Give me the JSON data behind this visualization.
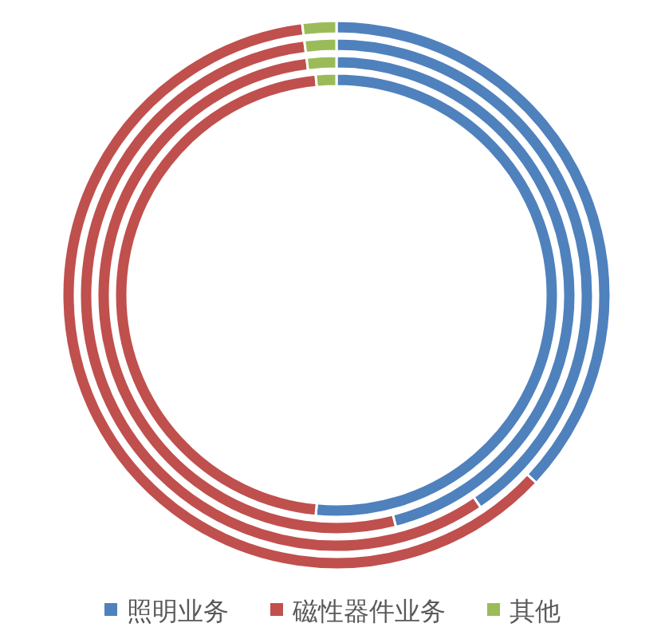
{
  "chart_data": {
    "type": "donut",
    "categories": [
      "照明业务",
      "磁性器件业务",
      "其他"
    ],
    "colors": [
      "#4f81bd",
      "#c0504d",
      "#9bbb59"
    ],
    "legend": "bottom",
    "series": [
      {
        "values": [
          51.5,
          47,
          1.5
        ]
      },
      {
        "values": [
          46,
          52,
          2
        ]
      },
      {
        "values": [
          40.5,
          57.5,
          2
        ]
      },
      {
        "values": [
          37,
          61,
          2
        ]
      }
    ]
  }
}
